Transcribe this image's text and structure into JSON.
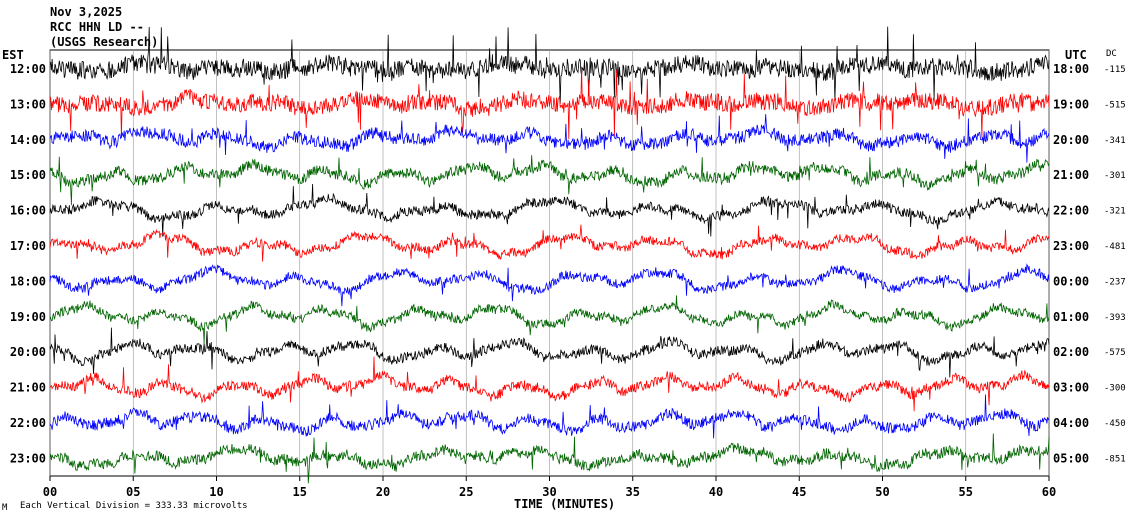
{
  "header": {
    "date": "Nov 3,2025",
    "station": "RCC HHN LD --",
    "subtitle": "(USGS Research)"
  },
  "labels": {
    "left_axis": "EST",
    "right_axis": "UTC",
    "dc_header": "DC",
    "xlabel": "TIME (MINUTES)",
    "scale_note": "Each Vertical Division = 333.33 microvolts",
    "mark": "M"
  },
  "chart_data": {
    "type": "line",
    "title": "",
    "xlabel": "TIME (MINUTES)",
    "ylabel": "",
    "xlim": [
      0,
      60
    ],
    "x_ticks": [
      "00",
      "05",
      "10",
      "15",
      "20",
      "25",
      "30",
      "35",
      "40",
      "45",
      "50",
      "55",
      "60"
    ],
    "grid": true,
    "series": [
      {
        "est": "12:00",
        "utc": "18:00",
        "dc": "-115",
        "color": "#000000",
        "amplitude": 1.0
      },
      {
        "est": "13:00",
        "utc": "19:00",
        "dc": "-515",
        "color": "#ff0000",
        "amplitude": 0.95
      },
      {
        "est": "14:00",
        "utc": "20:00",
        "dc": "-341",
        "color": "#0000ff",
        "amplitude": 0.7
      },
      {
        "est": "15:00",
        "utc": "21:00",
        "dc": "-301",
        "color": "#006400",
        "amplitude": 0.6
      },
      {
        "est": "16:00",
        "utc": "22:00",
        "dc": "-321",
        "color": "#000000",
        "amplitude": 0.55
      },
      {
        "est": "17:00",
        "utc": "23:00",
        "dc": "-481",
        "color": "#ff0000",
        "amplitude": 0.5
      },
      {
        "est": "18:00",
        "utc": "00:00",
        "dc": "-237",
        "color": "#0000ff",
        "amplitude": 0.5
      },
      {
        "est": "19:00",
        "utc": "01:00",
        "dc": "-393",
        "color": "#006400",
        "amplitude": 0.5
      },
      {
        "est": "20:00",
        "utc": "02:00",
        "dc": "-575",
        "color": "#000000",
        "amplitude": 0.55
      },
      {
        "est": "21:00",
        "utc": "03:00",
        "dc": "-300",
        "color": "#ff0000",
        "amplitude": 0.55
      },
      {
        "est": "22:00",
        "utc": "04:00",
        "dc": "-450",
        "color": "#0000ff",
        "amplitude": 0.6
      },
      {
        "est": "23:00",
        "utc": "05:00",
        "dc": "-851",
        "color": "#006400",
        "amplitude": 0.6
      }
    ]
  }
}
